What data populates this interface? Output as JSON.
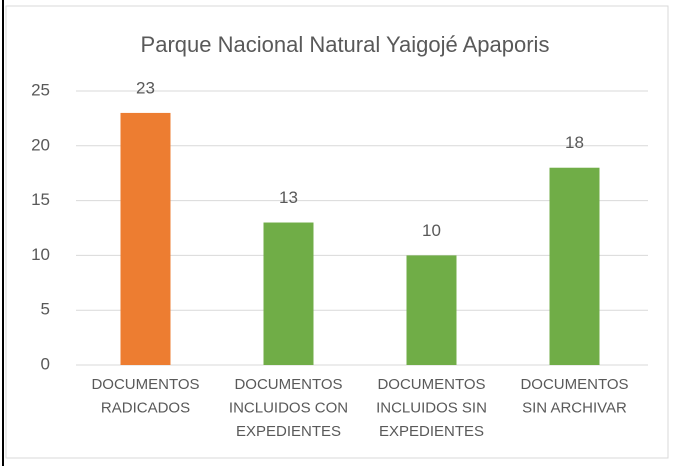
{
  "chart_data": {
    "type": "bar",
    "title": "Parque Nacional Natural Yaigojé Apaporis",
    "categories": [
      "DOCUMENTOS RADICADOS",
      "DOCUMENTOS INCLUIDOS CON EXPEDIENTES",
      "DOCUMENTOS INCLUIDOS SIN EXPEDIENTES",
      "DOCUMENTOS SIN ARCHIVAR"
    ],
    "values": [
      23,
      13,
      10,
      18
    ],
    "colors": [
      "#ed7d31",
      "#70ad47",
      "#70ad47",
      "#70ad47"
    ],
    "ylim": [
      0,
      25
    ],
    "yticks": [
      0,
      5,
      10,
      15,
      20,
      25
    ],
    "grid": true
  }
}
